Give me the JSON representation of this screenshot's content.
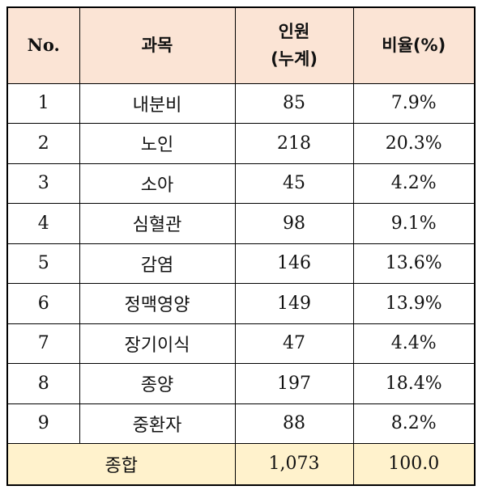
{
  "table": {
    "headers": {
      "no": "No.",
      "subject": "과목",
      "count_line1": "인원",
      "count_line2": "(누계)",
      "ratio": "비율(%)"
    },
    "rows": [
      {
        "no": "1",
        "subject": "내분비",
        "count": "85",
        "ratio": "7.9%"
      },
      {
        "no": "2",
        "subject": "노인",
        "count": "218",
        "ratio": "20.3%"
      },
      {
        "no": "3",
        "subject": "소아",
        "count": "45",
        "ratio": "4.2%"
      },
      {
        "no": "4",
        "subject": "심혈관",
        "count": "98",
        "ratio": "9.1%"
      },
      {
        "no": "5",
        "subject": "감염",
        "count": "146",
        "ratio": "13.6%"
      },
      {
        "no": "6",
        "subject": "정맥영양",
        "count": "149",
        "ratio": "13.9%"
      },
      {
        "no": "7",
        "subject": "장기이식",
        "count": "47",
        "ratio": "4.4%"
      },
      {
        "no": "8",
        "subject": "종양",
        "count": "197",
        "ratio": "18.4%"
      },
      {
        "no": "9",
        "subject": "중환자",
        "count": "88",
        "ratio": "8.2%"
      }
    ],
    "total": {
      "label": "종합",
      "count": "1,073",
      "ratio": "100.0"
    }
  },
  "colors": {
    "header_bg": "#fbe4d5",
    "total_bg": "#fff2cc",
    "border": "#000000"
  }
}
